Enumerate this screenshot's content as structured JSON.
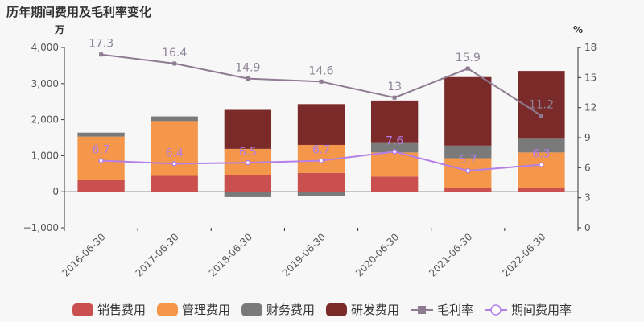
{
  "title": "历年期间费用及毛利率变化",
  "colors": {
    "sales": "#c9504f",
    "admin": "#f5974a",
    "finance": "#7a7a7a",
    "rnd": "#7b2a2a",
    "gross_margin": "#8e7b92",
    "period_rate": "#b47fe6"
  },
  "chart_data": {
    "type": "bar",
    "stacked": true,
    "categories": [
      "2016-06-30",
      "2017-06-30",
      "2018-06-30",
      "2019-06-30",
      "2020-06-30",
      "2021-06-30",
      "2022-06-30"
    ],
    "y_left": {
      "unit_label": "万",
      "range": [
        -1000,
        4000
      ],
      "ticks": [
        -1000,
        0,
        1000,
        2000,
        3000,
        4000
      ],
      "tick_labels": [
        "−1,000",
        "0",
        "1,000",
        "2,000",
        "3,000",
        "4,000"
      ]
    },
    "y_right": {
      "unit_label": "%",
      "range": [
        0,
        18
      ],
      "ticks": [
        0,
        3,
        6,
        9,
        12,
        15,
        18
      ],
      "tick_labels": [
        "0",
        "3",
        "6",
        "9",
        "12",
        "15",
        "18"
      ]
    },
    "series": [
      {
        "name": "销售费用",
        "key": "sales",
        "axis": "left",
        "type": "bar",
        "values": [
          330,
          440,
          470,
          520,
          420,
          110,
          110
        ]
      },
      {
        "name": "管理费用",
        "key": "admin",
        "axis": "left",
        "type": "bar",
        "values": [
          1200,
          1520,
          720,
          780,
          670,
          820,
          980
        ]
      },
      {
        "name": "财务费用",
        "key": "finance",
        "axis": "left",
        "type": "bar",
        "values": [
          110,
          130,
          -150,
          -110,
          260,
          350,
          380
        ]
      },
      {
        "name": "研发费用",
        "key": "rnd",
        "axis": "left",
        "type": "bar",
        "values": [
          0,
          0,
          1080,
          1130,
          1180,
          1900,
          1880
        ]
      },
      {
        "name": "毛利率",
        "key": "gross_margin",
        "axis": "right",
        "type": "line",
        "marker": "square",
        "values": [
          17.3,
          16.4,
          14.9,
          14.6,
          13,
          15.9,
          11.2
        ],
        "labels": [
          "17.3",
          "16.4",
          "14.9",
          "14.6",
          "13",
          "15.9",
          "11.2"
        ]
      },
      {
        "name": "期间费用率",
        "key": "period_rate",
        "axis": "right",
        "type": "line",
        "marker": "circle",
        "values": [
          6.7,
          6.4,
          6.5,
          6.7,
          7.6,
          5.7,
          6.3
        ],
        "labels": [
          "6.7",
          "6.4",
          "6.5",
          "6.7",
          "7.6",
          "5.7",
          "6.3"
        ]
      }
    ],
    "legend_position": "bottom",
    "grid": false
  }
}
